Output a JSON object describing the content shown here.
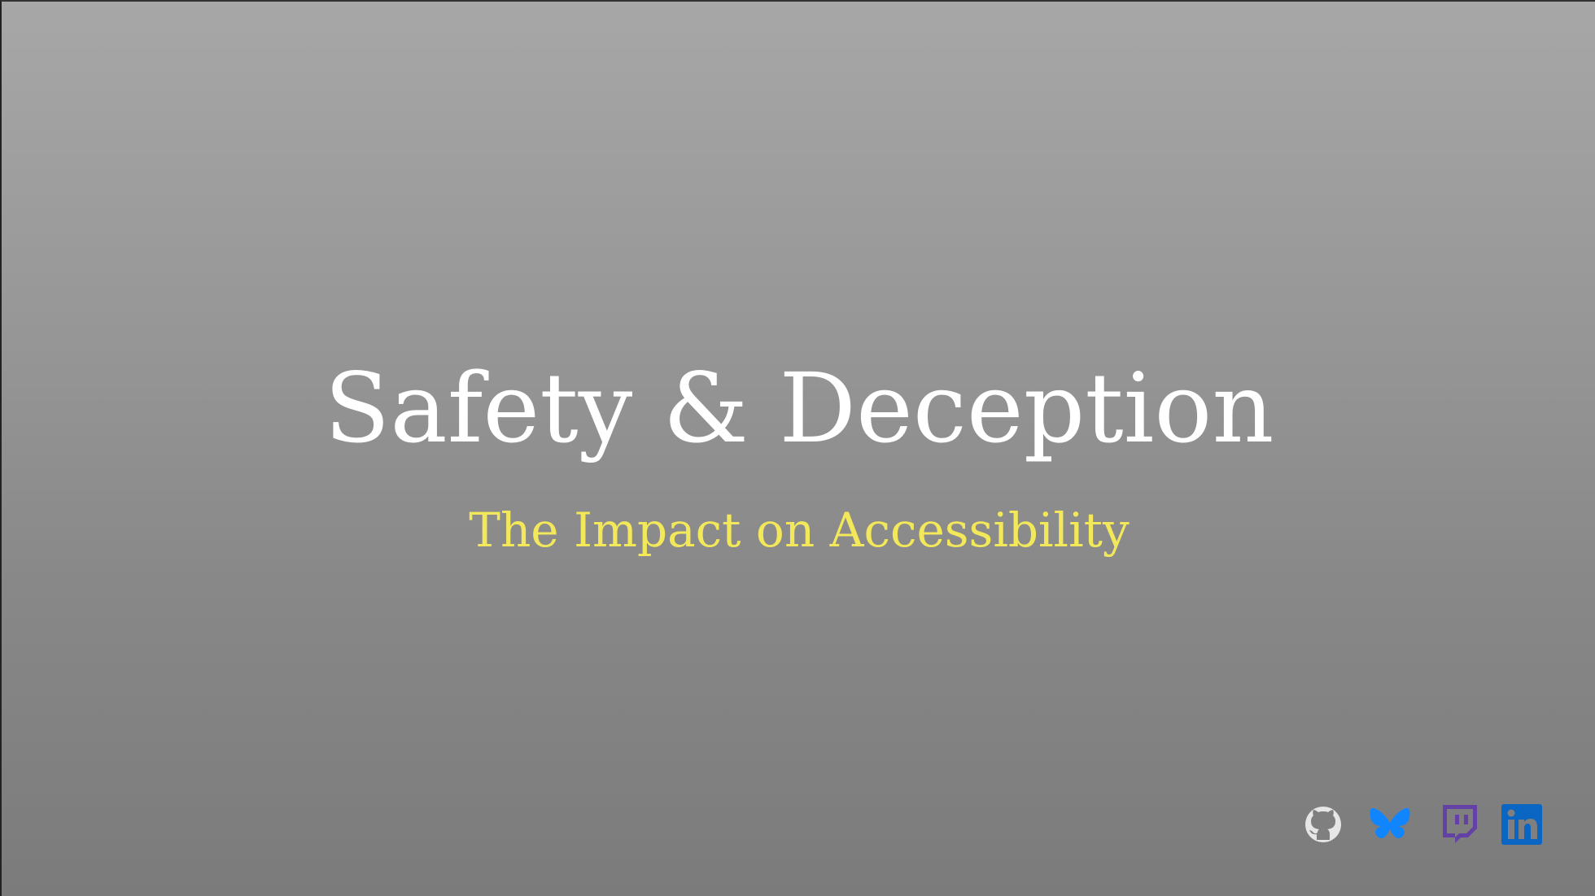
{
  "slide": {
    "title": "Safety & Deception",
    "subtitle": "The Impact on Accessibility"
  },
  "colors": {
    "title": "#ffffff",
    "subtitle": "#f2e85a",
    "github": "#e6e6e6",
    "bluesky": "#1185fe",
    "twitch": "#6441a5",
    "linkedin": "#0a66c2"
  },
  "social_links": [
    {
      "name": "GitHub",
      "icon": "github-icon"
    },
    {
      "name": "Bluesky",
      "icon": "bluesky-icon"
    },
    {
      "name": "Twitch",
      "icon": "twitch-icon"
    },
    {
      "name": "LinkedIn",
      "icon": "linkedin-icon"
    }
  ]
}
